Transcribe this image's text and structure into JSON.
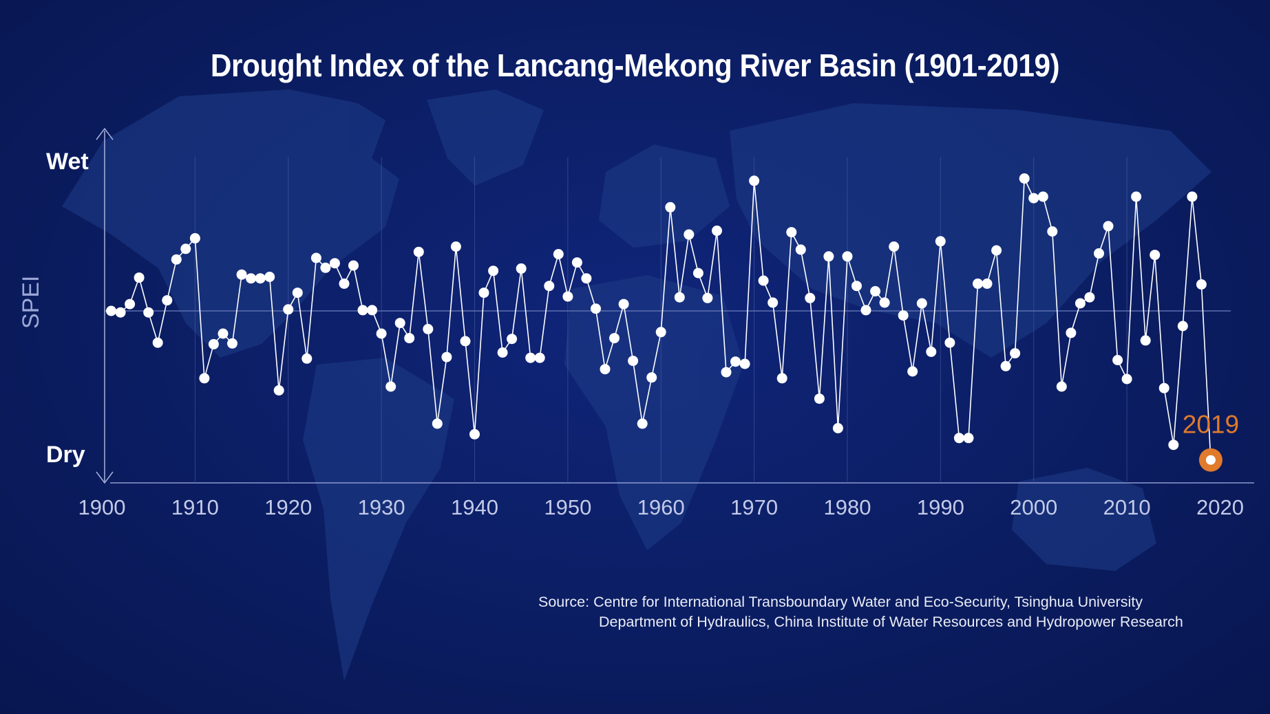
{
  "chart_data": {
    "type": "line",
    "title": "Drought Index of the Lancang-Mekong River Basin (1901-2019)",
    "ylabel": "SPEI",
    "y_axis_labels": {
      "top": "Wet",
      "bottom": "Dry"
    },
    "xlim": [
      1900,
      2021
    ],
    "ylim": [
      -2.2,
      2.2
    ],
    "x_ticks": [
      "1900",
      "1910",
      "1920",
      "1930",
      "1940",
      "1950",
      "1960",
      "1970",
      "1980",
      "1990",
      "2000",
      "2010",
      "2020"
    ],
    "highlight": {
      "label": "2019",
      "x": 2019,
      "y": -1.97,
      "color": "#e07a2c"
    },
    "grid": "vertical",
    "series": [
      {
        "x": [
          1901,
          1902,
          1903,
          1904,
          1905,
          1906,
          1907,
          1908,
          1909,
          1910,
          1911,
          1912,
          1913,
          1914,
          1915,
          1916,
          1917,
          1918,
          1919,
          1920,
          1921,
          1922,
          1923,
          1924,
          1925,
          1926,
          1927,
          1928,
          1929,
          1930,
          1931,
          1932,
          1933,
          1934,
          1935,
          1936,
          1937,
          1938,
          1939,
          1940,
          1941,
          1942,
          1943,
          1944,
          1945,
          1946,
          1947,
          1948,
          1949,
          1950,
          1951,
          1952,
          1953,
          1954,
          1955,
          1956,
          1957,
          1958,
          1959,
          1960,
          1961,
          1962,
          1963,
          1964,
          1965,
          1966,
          1967,
          1968,
          1969,
          1970,
          1971,
          1972,
          1973,
          1974,
          1975,
          1976,
          1977,
          1978,
          1979,
          1980,
          1981,
          1982,
          1983,
          1984,
          1985,
          1986,
          1987,
          1988,
          1989,
          1990,
          1991,
          1992,
          1993,
          1994,
          1995,
          1996,
          1997,
          1998,
          1999,
          2000,
          2001,
          2002,
          2003,
          2004,
          2005,
          2006,
          2007,
          2008,
          2009,
          2010,
          2011,
          2012,
          2013,
          2014,
          2015,
          2016,
          2017,
          2018,
          2019
        ],
        "y": [
          0.0,
          -0.02,
          0.09,
          0.44,
          -0.02,
          -0.42,
          0.14,
          0.68,
          0.82,
          0.96,
          -0.89,
          -0.44,
          -0.3,
          -0.43,
          0.48,
          0.43,
          0.43,
          0.45,
          -1.05,
          0.02,
          0.24,
          -0.63,
          0.7,
          0.57,
          0.63,
          0.36,
          0.6,
          0.01,
          0.01,
          -0.3,
          -1.0,
          -0.16,
          -0.36,
          0.78,
          -0.24,
          -1.49,
          -0.61,
          0.85,
          -0.4,
          -1.63,
          0.24,
          0.53,
          -0.55,
          -0.37,
          0.56,
          -0.62,
          -0.62,
          0.33,
          0.75,
          0.19,
          0.64,
          0.43,
          0.03,
          -0.77,
          -0.36,
          0.09,
          -0.66,
          -1.49,
          -0.88,
          -0.28,
          1.37,
          0.18,
          1.01,
          0.5,
          0.17,
          1.06,
          -0.81,
          -0.67,
          -0.7,
          1.72,
          0.4,
          0.11,
          -0.89,
          1.04,
          0.81,
          0.17,
          -1.16,
          0.72,
          -1.55,
          0.72,
          0.33,
          0.01,
          0.26,
          0.11,
          0.85,
          -0.06,
          -0.8,
          0.1,
          -0.54,
          0.92,
          -0.42,
          -1.68,
          -1.68,
          0.36,
          0.36,
          0.8,
          -0.73,
          -0.56,
          1.75,
          1.49,
          1.51,
          1.05,
          -1.0,
          -0.29,
          0.1,
          0.18,
          0.76,
          1.12,
          -0.65,
          -0.9,
          1.51,
          -0.39,
          0.74,
          -1.02,
          -1.77,
          -0.2,
          1.51,
          0.35,
          -1.97
        ]
      }
    ]
  },
  "source": {
    "line1": "Source: Centre for International Transboundary Water and Eco-Security, Tsinghua University",
    "line2": "Department of Hydraulics, China Institute of Water Resources and Hydropower Research"
  },
  "colors": {
    "background": "#0b1d62",
    "map": "#1c3a86",
    "points": "#ffffff",
    "highlight": "#e07a2c"
  }
}
